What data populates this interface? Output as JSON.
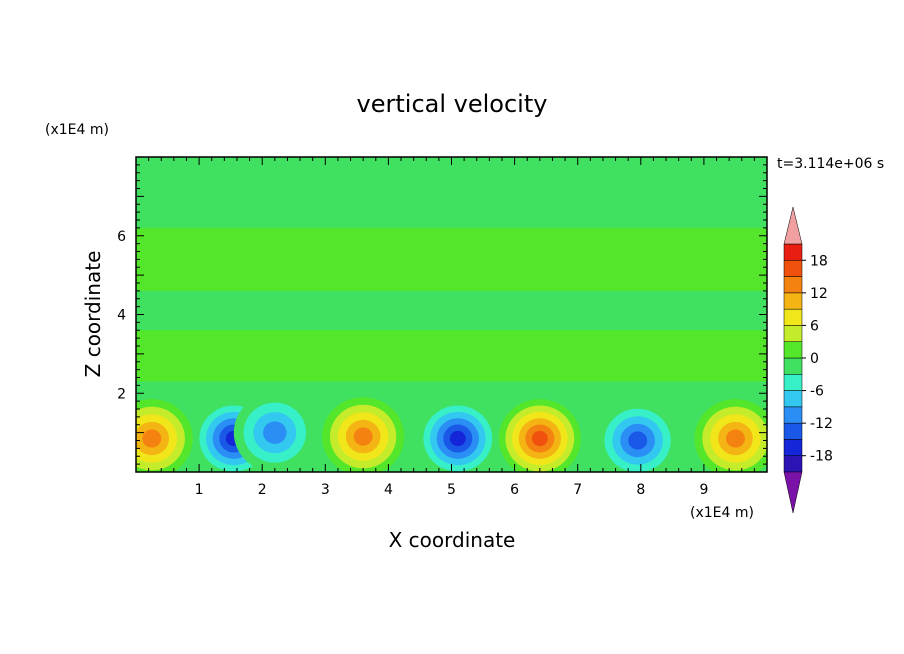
{
  "chart_data": {
    "type": "heatmap",
    "title": "vertical velocity",
    "time_label": "t=3.114e+06 s",
    "xlabel": "X coordinate",
    "ylabel": "Z coordinate",
    "x_unit": "(x1E4 m)",
    "y_unit": "(x1E4 m)",
    "xlim": [
      0,
      10
    ],
    "ylim": [
      0,
      8
    ],
    "xticks": [
      1,
      2,
      3,
      4,
      5,
      6,
      7,
      8,
      9
    ],
    "yticks": [
      2,
      4,
      6
    ],
    "colorbar": {
      "levels": [
        -21,
        -18,
        -15,
        -12,
        -9,
        -6,
        -3,
        0,
        3,
        6,
        9,
        12,
        15,
        18,
        21
      ],
      "tick_labels": [
        "-18",
        "-12",
        "-6",
        "0",
        "6",
        "12",
        "18"
      ],
      "tick_values": [
        -18,
        -12,
        -6,
        0,
        6,
        12,
        18
      ],
      "colors": [
        "#7a12a8",
        "#2a14b4",
        "#1426d8",
        "#1a58e8",
        "#2a8ef4",
        "#33c8f0",
        "#38f0c8",
        "#40e060",
        "#54e62a",
        "#c4ec2a",
        "#f0e61a",
        "#f4b414",
        "#f48210",
        "#f0520e",
        "#e81e12",
        "#f0a0a0"
      ]
    },
    "cells": [
      {
        "x": 0.25,
        "z": 0.85,
        "w": 13
      },
      {
        "x": 1.55,
        "z": 0.85,
        "w": -15
      },
      {
        "x": 2.2,
        "z": 1.0,
        "w": -9
      },
      {
        "x": 3.6,
        "z": 0.9,
        "w": 14
      },
      {
        "x": 5.1,
        "z": 0.85,
        "w": -15
      },
      {
        "x": 6.4,
        "z": 0.85,
        "w": 17
      },
      {
        "x": 7.95,
        "z": 0.8,
        "w": -14
      },
      {
        "x": 9.5,
        "z": 0.85,
        "w": 14
      }
    ]
  }
}
